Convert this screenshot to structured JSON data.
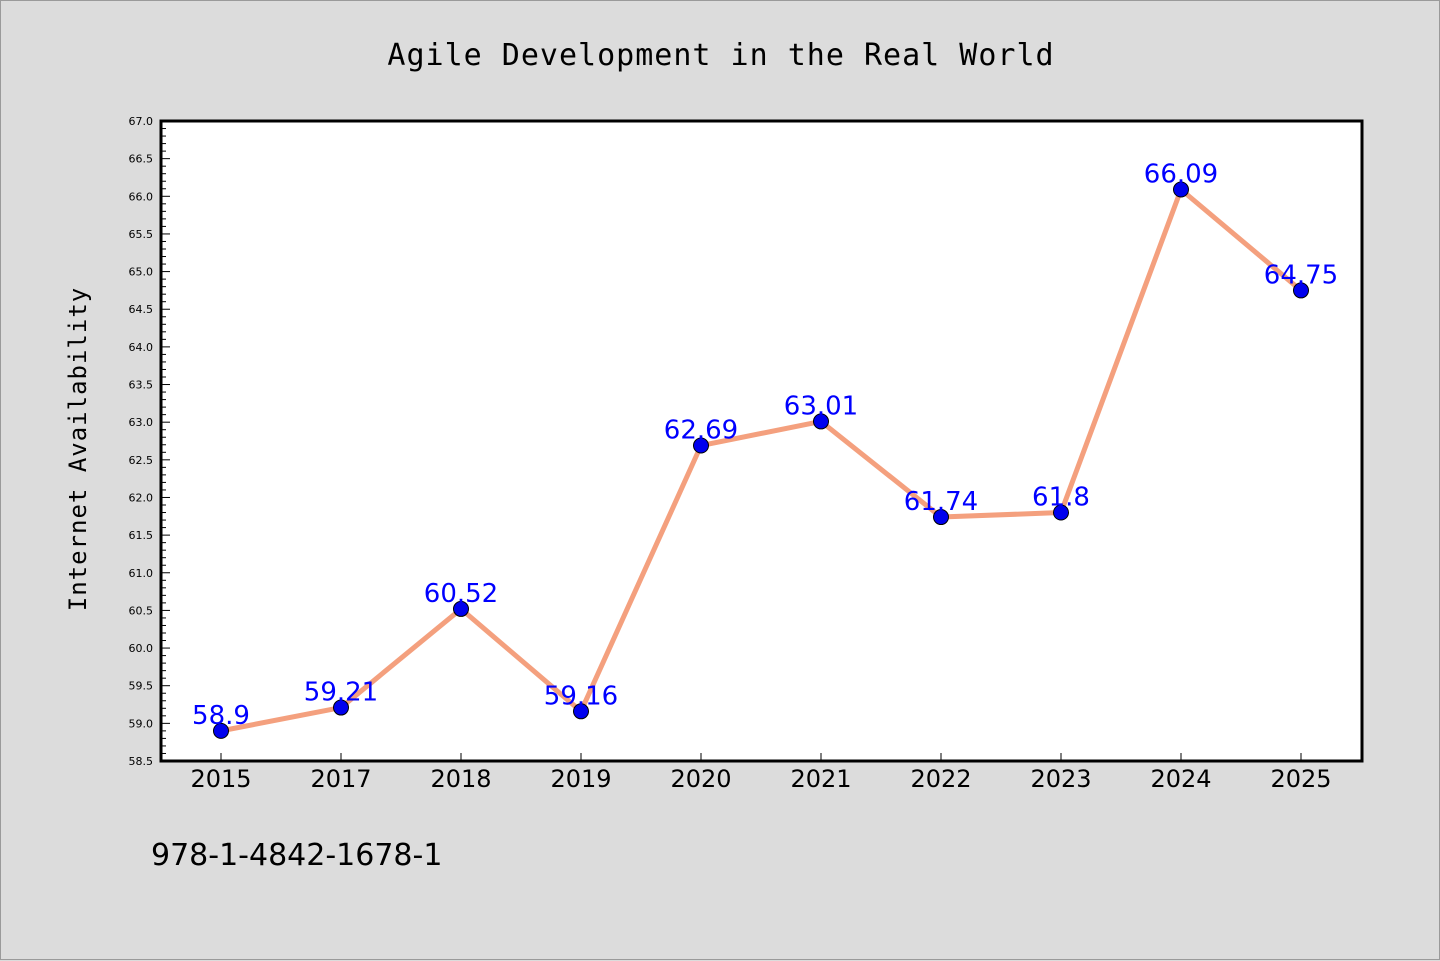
{
  "chart_data": {
    "type": "line",
    "title": "Agile Development in the Real World",
    "xlabel": "",
    "ylabel": "Internet Availability",
    "categories": [
      "2015",
      "2017",
      "2018",
      "2019",
      "2020",
      "2021",
      "2022",
      "2023",
      "2024",
      "2025"
    ],
    "series": [
      {
        "values": [
          58.9,
          59.21,
          60.52,
          59.16,
          62.69,
          63.01,
          61.74,
          61.8,
          66.09,
          64.75
        ],
        "labels": [
          "58.9",
          "59.21",
          "60.52",
          "59.16",
          "62.69",
          "63.01",
          "61.74",
          "61.8",
          "66.09",
          "64.75"
        ],
        "line_color": "#f4a07e",
        "marker_color": "#0000ee"
      }
    ],
    "ylim": [
      58.5,
      67.0
    ],
    "yticks": [
      "58.5",
      "59.0",
      "59.5",
      "60.0",
      "60.5",
      "61.0",
      "61.5",
      "62.0",
      "62.5",
      "63.0",
      "63.5",
      "64.0",
      "64.5",
      "65.0",
      "65.5",
      "66.0",
      "66.5",
      "67.0"
    ],
    "grid": false,
    "label_color": "#0000ff"
  },
  "footnote": "978-1-4842-1678-1"
}
